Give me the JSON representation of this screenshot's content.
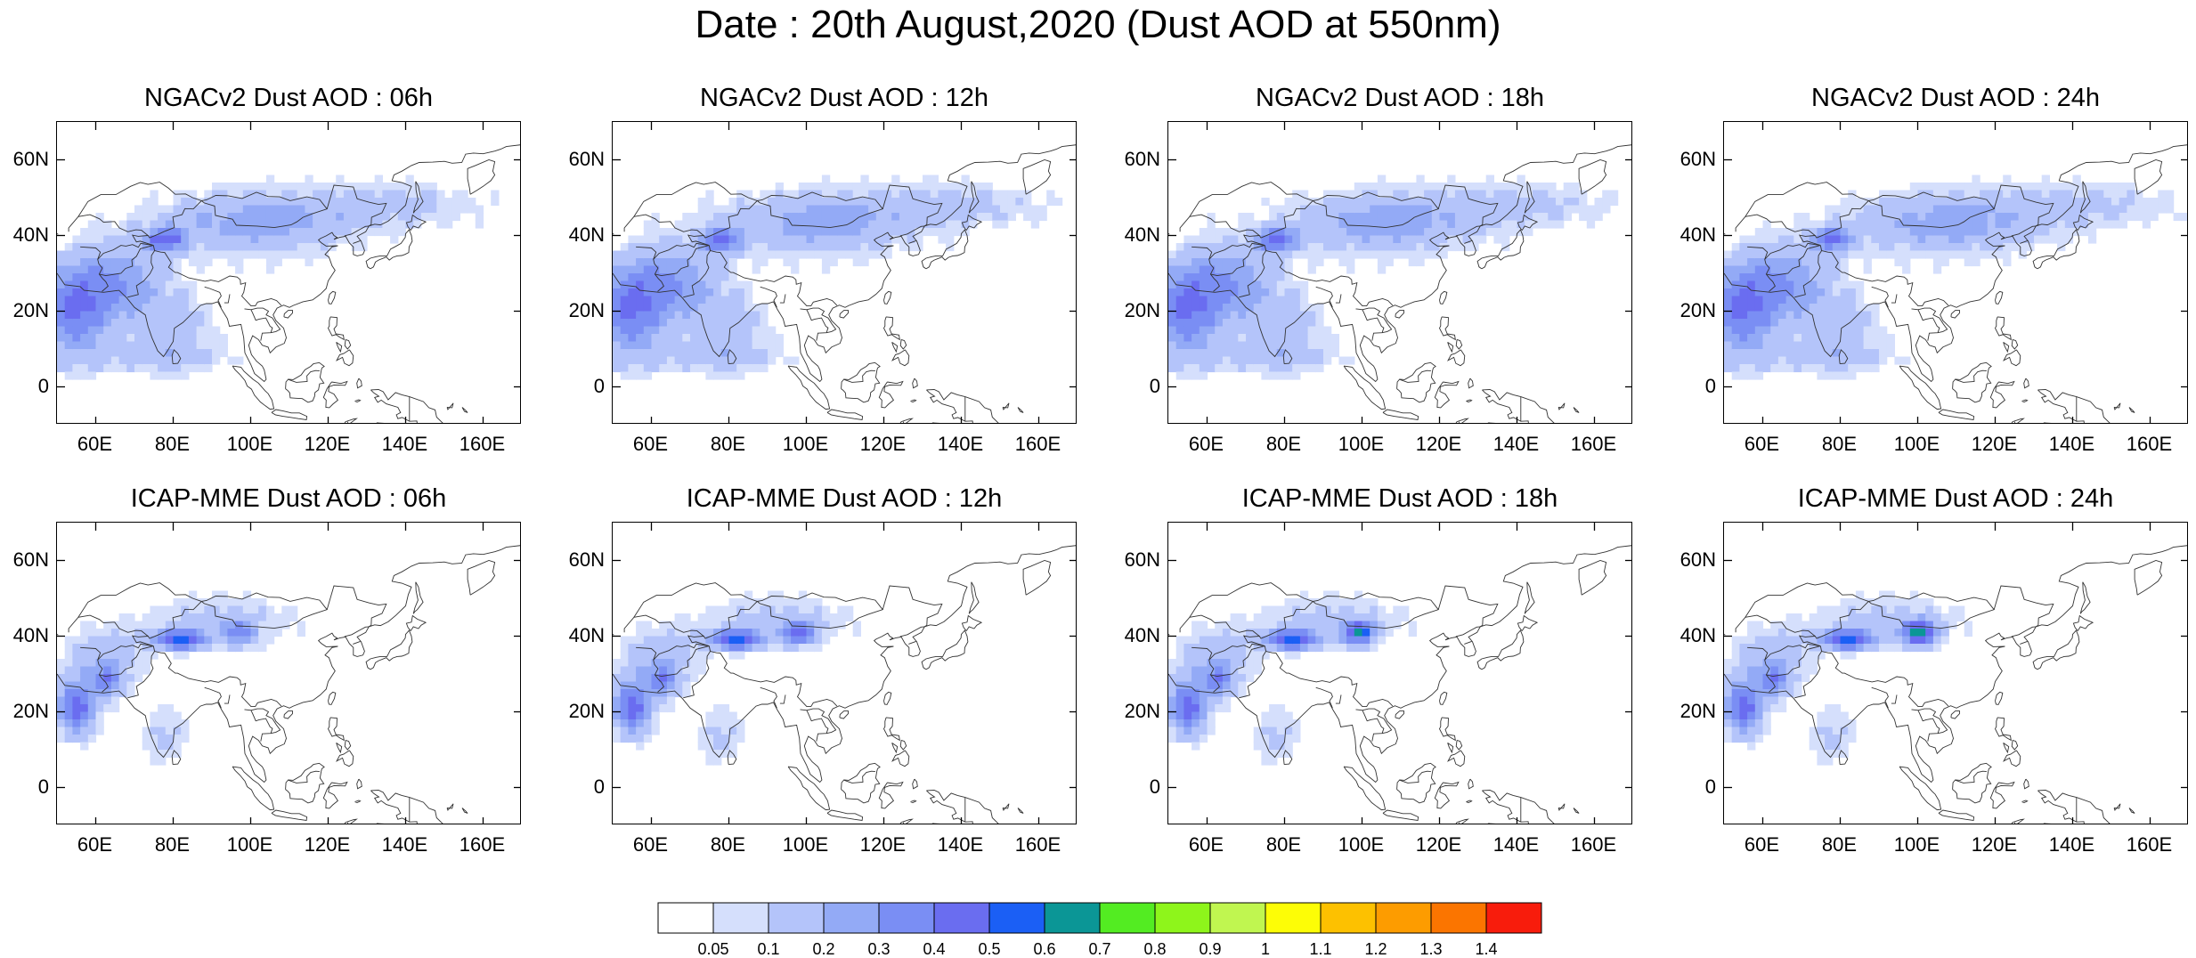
{
  "title": "Date : 20th August,2020 (Dust AOD at 550nm)",
  "panels": [
    {
      "title": "NGACv2 Dust AOD : 06h",
      "model": "ngac"
    },
    {
      "title": "NGACv2 Dust AOD : 12h",
      "model": "ngac"
    },
    {
      "title": "NGACv2 Dust AOD : 18h",
      "model": "ngac"
    },
    {
      "title": "NGACv2 Dust AOD : 24h",
      "model": "ngac"
    },
    {
      "title": "ICAP-MME Dust AOD : 06h",
      "model": "icap"
    },
    {
      "title": "ICAP-MME Dust AOD : 12h",
      "model": "icap"
    },
    {
      "title": "ICAP-MME Dust AOD : 18h",
      "model": "icap"
    },
    {
      "title": "ICAP-MME Dust AOD : 24h",
      "model": "icap"
    }
  ],
  "map_extent": {
    "lon": [
      50,
      170
    ],
    "lat": [
      -10,
      70
    ]
  },
  "lon_ticks": [
    "60E",
    "80E",
    "100E",
    "120E",
    "140E",
    "160E"
  ],
  "lon_tick_values": [
    60,
    80,
    100,
    120,
    140,
    160
  ],
  "lat_ticks": [
    "60N",
    "40N",
    "20N",
    "0"
  ],
  "lat_tick_values": [
    60,
    40,
    20,
    0
  ],
  "colorbar": {
    "labels": [
      "0.05",
      "0.1",
      "0.2",
      "0.3",
      "0.4",
      "0.5",
      "0.6",
      "0.7",
      "0.8",
      "0.9",
      "1",
      "1.1",
      "1.2",
      "1.3",
      "1.4"
    ],
    "colors": [
      "#ffffff",
      "#d5dffc",
      "#b4c4fa",
      "#93aaf6",
      "#7a8ef4",
      "#6a6df0",
      "#1b5ff5",
      "#0b9696",
      "#53ec22",
      "#8ef51b",
      "#c0f650",
      "#fdfd06",
      "#fdc100",
      "#fd9c00",
      "#fb7500",
      "#f81c0c"
    ]
  }
}
